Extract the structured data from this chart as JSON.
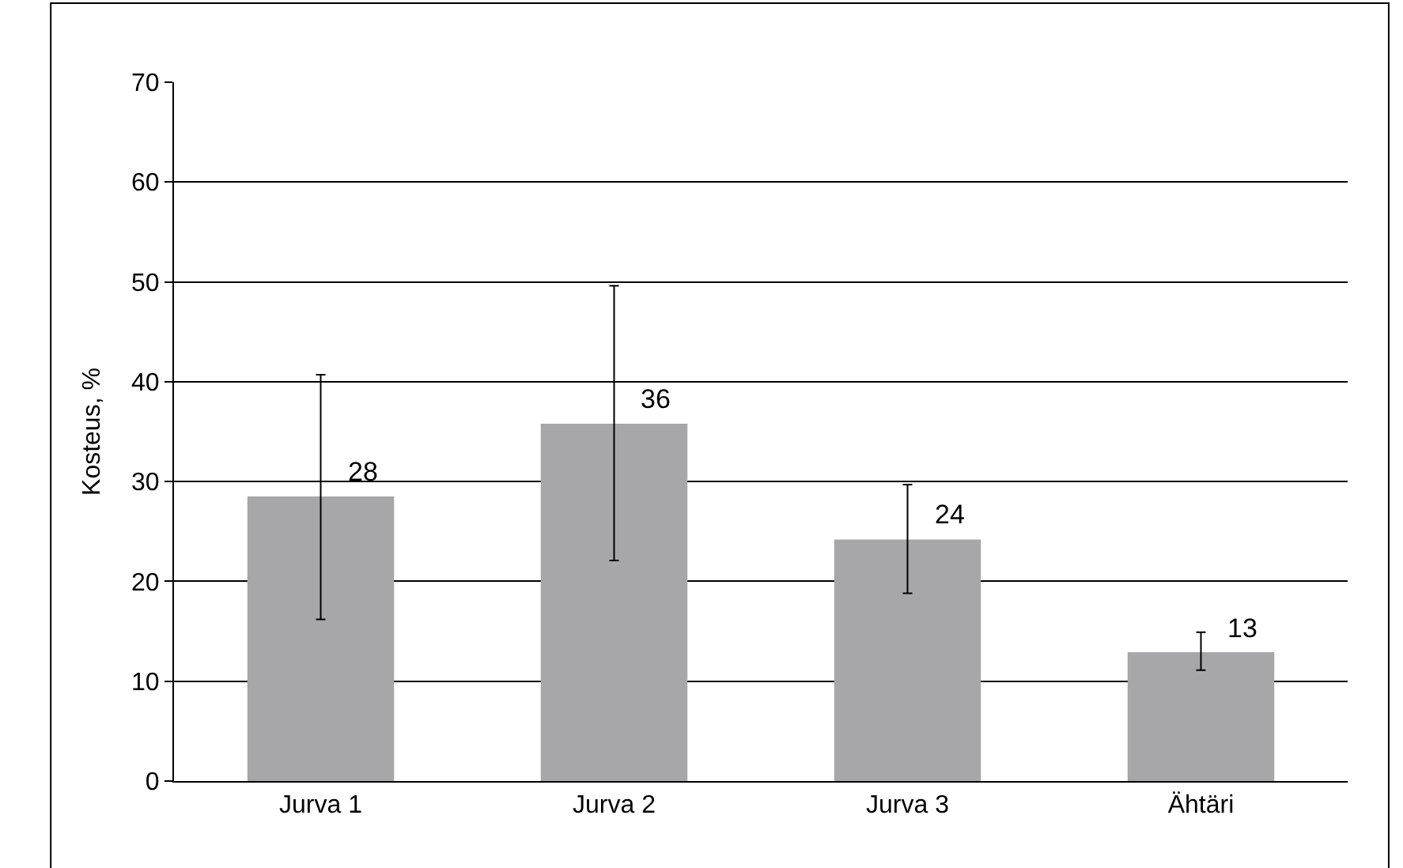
{
  "chart_data": {
    "type": "bar",
    "ylabel": "Kosteus, %",
    "categories": [
      "Jurva 1",
      "Jurva 2",
      "Jurva 3",
      "Ähtäri"
    ],
    "values": [
      28.5,
      35.8,
      24.2,
      12.9
    ],
    "errors": [
      [
        16.2,
        40.7
      ],
      [
        22.1,
        49.6
      ],
      [
        18.8,
        29.7
      ],
      [
        11.1,
        14.9
      ]
    ],
    "value_labels": [
      "28",
      "36",
      "24",
      "13"
    ],
    "color": "#a7a7a9",
    "ylim": [
      0,
      70
    ],
    "yticks": [
      0,
      10,
      20,
      30,
      40,
      50,
      60,
      70
    ],
    "grid": "y",
    "legend": false
  }
}
